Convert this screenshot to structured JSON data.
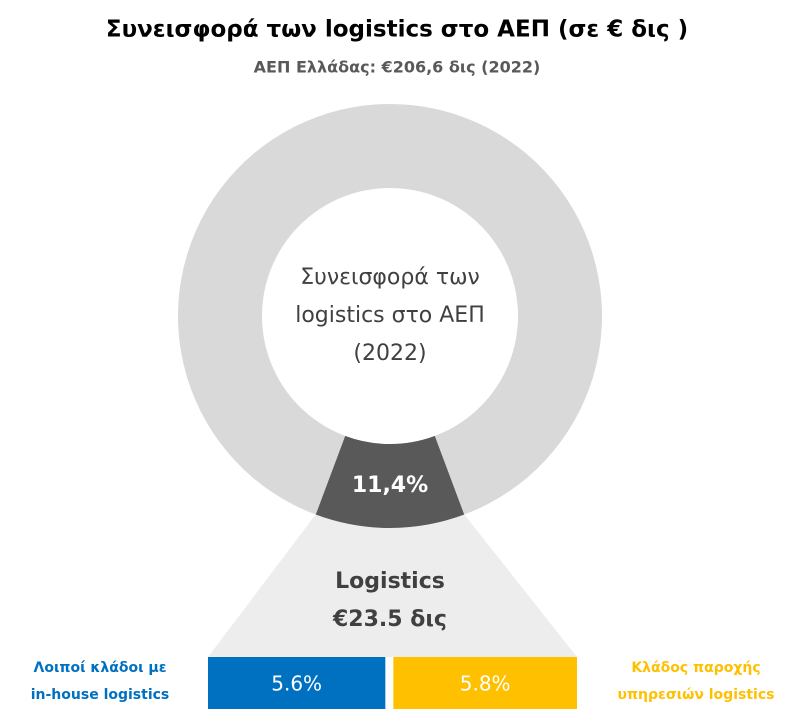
{
  "chart_data": {
    "type": "donut",
    "title": "Συνεισφορά των logistics στο ΑΕΠ (σε € δις )",
    "subtitle": "ΑΕΠ Ελλάδας: €206,6 δις (2022)",
    "center_label": [
      "Συνεισφορά των",
      "logistics στο ΑΕΠ",
      "(2022)"
    ],
    "values": [
      11.4,
      88.6
    ],
    "value_labels": [
      "11,4%",
      null
    ],
    "colors": [
      "#595959",
      "#d9d9d9"
    ],
    "breakdown": {
      "type": "stacked-bar",
      "label": [
        "Logistics",
        "€23.5 δις"
      ],
      "categories": [
        [
          "Λοιποί κλάδοι με",
          "in-house logistics"
        ],
        [
          "Κλάδος παροχής",
          "υπηρεσιών logistics"
        ]
      ],
      "values": [
        5.6,
        5.8
      ],
      "value_labels": [
        "5.6%",
        "5.8%"
      ],
      "colors": [
        "#0070c0",
        "#ffc000"
      ]
    }
  }
}
